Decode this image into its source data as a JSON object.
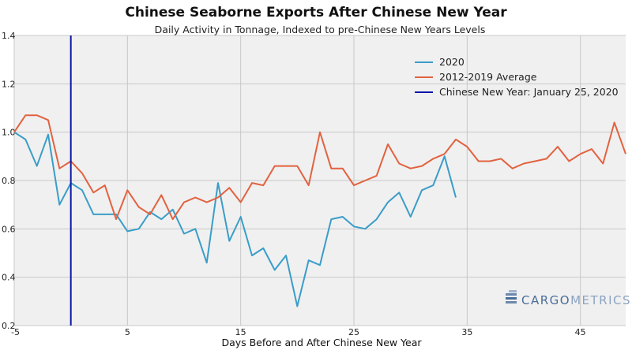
{
  "chart_data": {
    "type": "line",
    "title": "Chinese Seaborne Exports After Chinese New Year",
    "subtitle": "Daily Activity in Tonnage, Indexed to pre-Chinese New Years Levels",
    "xlabel": "Days Before and After Chinese New Year",
    "ylabel": "",
    "xlim": [
      -5,
      49
    ],
    "ylim": [
      0.2,
      1.4
    ],
    "x_ticks": [
      -5,
      5,
      15,
      25,
      35,
      45
    ],
    "y_ticks": [
      0.2,
      0.4,
      0.6,
      0.8,
      1.0,
      1.2,
      1.4
    ],
    "x_tick_labels": [
      "-5",
      "5",
      "15",
      "25",
      "35",
      "45"
    ],
    "y_tick_labels": [
      "0.2",
      "0.4",
      "0.6",
      "0.8",
      "1.0",
      "1.2",
      "1.4"
    ],
    "grid": true,
    "legend_position": "top-right",
    "series": [
      {
        "name": "2020",
        "color": "#3a9dc8",
        "x": [
          -5,
          -4,
          -3,
          -2,
          -1,
          0,
          1,
          2,
          3,
          4,
          5,
          6,
          7,
          8,
          9,
          10,
          11,
          12,
          13,
          14,
          15,
          16,
          17,
          18,
          19,
          20,
          21,
          22,
          23,
          24,
          25,
          26,
          27,
          28,
          29,
          30,
          31,
          32,
          33,
          34
        ],
        "values": [
          1.0,
          0.97,
          0.86,
          0.99,
          0.7,
          0.79,
          0.76,
          0.66,
          0.66,
          0.66,
          0.59,
          0.6,
          0.67,
          0.64,
          0.68,
          0.58,
          0.6,
          0.46,
          0.79,
          0.55,
          0.65,
          0.49,
          0.52,
          0.43,
          0.49,
          0.28,
          0.47,
          0.45,
          0.64,
          0.65,
          0.61,
          0.6,
          0.64,
          0.71,
          0.75,
          0.65,
          0.76,
          0.78,
          0.9,
          0.73
        ]
      },
      {
        "name": "2012-2019 Average",
        "color": "#e2623f",
        "x": [
          -5,
          -4,
          -3,
          -2,
          -1,
          0,
          1,
          2,
          3,
          4,
          5,
          6,
          7,
          8,
          9,
          10,
          11,
          12,
          13,
          14,
          15,
          16,
          17,
          18,
          19,
          20,
          21,
          22,
          23,
          24,
          25,
          26,
          27,
          28,
          29,
          30,
          31,
          32,
          33,
          34,
          35,
          36,
          37,
          38,
          39,
          40,
          41,
          42,
          43,
          44,
          45,
          46,
          47,
          48,
          49
        ],
        "values": [
          1.0,
          1.07,
          1.07,
          1.05,
          0.85,
          0.88,
          0.83,
          0.75,
          0.78,
          0.64,
          0.76,
          0.69,
          0.66,
          0.74,
          0.64,
          0.71,
          0.73,
          0.71,
          0.73,
          0.77,
          0.71,
          0.79,
          0.78,
          0.86,
          0.86,
          0.86,
          0.78,
          1.0,
          0.85,
          0.85,
          0.78,
          0.8,
          0.82,
          0.95,
          0.87,
          0.85,
          0.86,
          0.89,
          0.91,
          0.97,
          0.94,
          0.88,
          0.88,
          0.89,
          0.85,
          0.87,
          0.88,
          0.89,
          0.94,
          0.88,
          0.91,
          0.93,
          0.87,
          1.04,
          0.91
        ]
      }
    ],
    "vlines": [
      {
        "name": "Chinese New Year: January 25, 2020",
        "x": 0,
        "color": "#0b15a8"
      }
    ]
  },
  "brand": {
    "name": "CARGOMETRICS",
    "color_cargo": "#4a6d9a",
    "color_metrics": "#8aa3c2"
  }
}
